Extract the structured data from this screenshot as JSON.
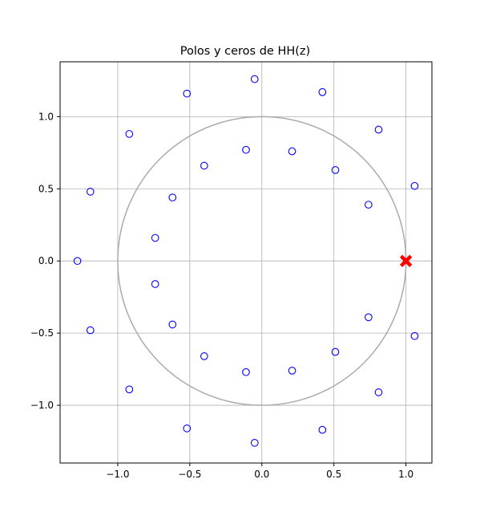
{
  "chart_data": {
    "type": "scatter",
    "title": "Polos y ceros de HH(z)",
    "xlabel": "",
    "ylabel": "",
    "xlim": [
      -1.4,
      1.18
    ],
    "ylim": [
      -1.4,
      1.38
    ],
    "grid": true,
    "x_ticks": [
      -1.0,
      -0.5,
      0.0,
      0.5,
      1.0
    ],
    "x_tick_labels": [
      "−1.0",
      "−0.5",
      "0.0",
      "0.5",
      "1.0"
    ],
    "y_ticks": [
      -1.0,
      -0.5,
      0.0,
      0.5,
      1.0
    ],
    "y_tick_labels": [
      "−1.0",
      "−0.5",
      "0.0",
      "0.5",
      "1.0"
    ],
    "unit_circle": {
      "radius": 1.0,
      "color": "#aaaaaa"
    },
    "series": [
      {
        "marker": "circle-open",
        "color": "#0000ff",
        "points": [
          [
            -0.05,
            1.26
          ],
          [
            0.42,
            1.17
          ],
          [
            0.81,
            0.91
          ],
          [
            1.06,
            0.52
          ],
          [
            -0.52,
            1.16
          ],
          [
            -0.92,
            0.88
          ],
          [
            -1.19,
            0.48
          ],
          [
            -1.28,
            0.0
          ],
          [
            -1.19,
            -0.48
          ],
          [
            -0.92,
            -0.89
          ],
          [
            -0.52,
            -1.16
          ],
          [
            -0.05,
            -1.26
          ],
          [
            0.42,
            -1.17
          ],
          [
            0.81,
            -0.91
          ],
          [
            1.06,
            -0.52
          ],
          [
            -0.11,
            0.77
          ],
          [
            0.21,
            0.76
          ],
          [
            0.51,
            0.63
          ],
          [
            0.74,
            0.39
          ],
          [
            -0.4,
            0.66
          ],
          [
            -0.62,
            0.44
          ],
          [
            -0.74,
            0.16
          ],
          [
            -0.74,
            -0.16
          ],
          [
            -0.62,
            -0.44
          ],
          [
            -0.4,
            -0.66
          ],
          [
            -0.11,
            -0.77
          ],
          [
            0.21,
            -0.76
          ],
          [
            0.51,
            -0.63
          ],
          [
            0.74,
            -0.39
          ]
        ]
      },
      {
        "marker": "x-filled",
        "color": "#ff0000",
        "points": [
          [
            1.0,
            0.0
          ]
        ]
      }
    ]
  }
}
